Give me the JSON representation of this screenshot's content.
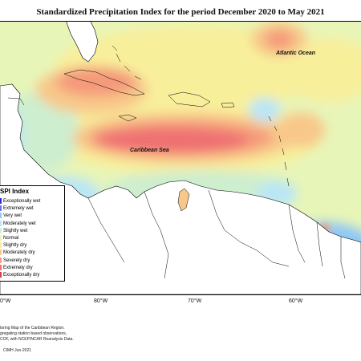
{
  "title": "Standardized Precipitation Index for the period December 2020 to May 2021",
  "map_labels": {
    "atlantic": "Atlantic Ocean",
    "caribbean": "Caribbean Sea"
  },
  "legend": {
    "title": "SPI Index",
    "items": [
      {
        "label": "Exceptionally wet",
        "color": "#2b2bd1"
      },
      {
        "label": "Extremely wet",
        "color": "#6f6fee"
      },
      {
        "label": "Very wet",
        "color": "#8fc8f5"
      },
      {
        "label": "Moderately wet",
        "color": "#b9e6f7"
      },
      {
        "label": "Slightly wet",
        "color": "#cdeecf"
      },
      {
        "label": "Normal",
        "color": "#e8f5b8"
      },
      {
        "label": "Slightly dry",
        "color": "#f8ef9b"
      },
      {
        "label": "Moderately dry",
        "color": "#f8c88a"
      },
      {
        "label": "Severely dry",
        "color": "#f59a7a"
      },
      {
        "label": "Extremely dry",
        "color": "#ef6f72"
      },
      {
        "label": "Exceptionally dry",
        "color": "#d63c4a"
      }
    ]
  },
  "longitude_ticks": [
    "0°W",
    "80°W",
    "70°W",
    "60°W"
  ],
  "footer": {
    "lines": [
      "toring Map of the Caribbean Region.",
      "gregating station based observations,",
      "COF, with NCEP/NCAR Reanalysis Data."
    ],
    "credit": "CIMH Jun-2021"
  }
}
